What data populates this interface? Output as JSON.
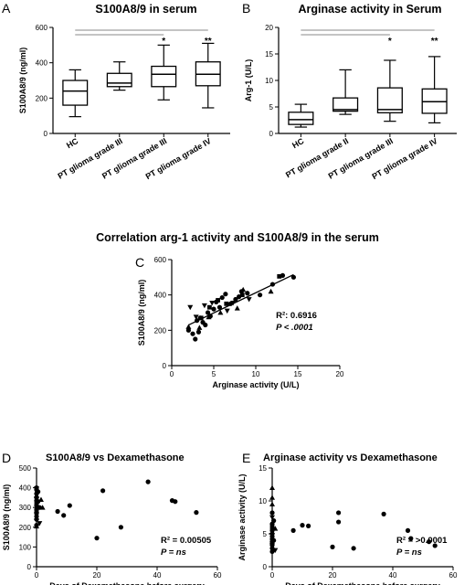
{
  "chart_data": [
    {
      "panel": "A",
      "type": "box",
      "title": "S100A8/9 in serum",
      "ylabel": "S100A8/9 (ng/ml)",
      "ylim": [
        0,
        600
      ],
      "yticks": [
        "0",
        "200",
        "400",
        "600"
      ],
      "categories": [
        "HC",
        "PT glioma grade III",
        "PT glioma grade III",
        "PT glioma grade IV"
      ],
      "boxes": [
        {
          "min": 95,
          "q1": 160,
          "median": 240,
          "q3": 300,
          "max": 360
        },
        {
          "min": 245,
          "q1": 265,
          "median": 285,
          "q3": 340,
          "max": 405
        },
        {
          "min": 190,
          "q1": 265,
          "median": 335,
          "q3": 380,
          "max": 500
        },
        {
          "min": 145,
          "q1": 270,
          "median": 335,
          "q3": 405,
          "max": 510
        }
      ],
      "significance": [
        {
          "to": 3,
          "label": "*"
        },
        {
          "to": 4,
          "label": "**"
        }
      ]
    },
    {
      "panel": "B",
      "type": "box",
      "title": "Arginase activity in Serum",
      "ylabel": "Arg-1 (U/L)",
      "ylim": [
        0,
        20
      ],
      "yticks": [
        "0",
        "5",
        "10",
        "15",
        "20"
      ],
      "categories": [
        "HC",
        "PT glioma grade II",
        "PT glioma grade III",
        "PT glioma grade IV"
      ],
      "boxes": [
        {
          "min": 1.2,
          "q1": 1.7,
          "median": 2.6,
          "q3": 4.0,
          "max": 5.5
        },
        {
          "min": 3.6,
          "q1": 4.2,
          "median": 4.5,
          "q3": 6.7,
          "max": 12.0
        },
        {
          "min": 2.3,
          "q1": 3.9,
          "median": 4.5,
          "q3": 8.6,
          "max": 13.8
        },
        {
          "min": 2.0,
          "q1": 3.8,
          "median": 6.0,
          "q3": 8.4,
          "max": 14.5
        }
      ],
      "significance": [
        {
          "to": 3,
          "label": "*"
        },
        {
          "to": 4,
          "label": "**"
        }
      ]
    },
    {
      "panel": "C",
      "type": "scatter",
      "title": "Correlation arg-1 activity and S100A8/9 in the serum",
      "xlabel": "Arginase activity (U/L)",
      "ylabel": "S100A8/9 (ng/ml)",
      "xlim": [
        0,
        20
      ],
      "ylim": [
        0,
        600
      ],
      "xticks": [
        "0",
        "5",
        "10",
        "15",
        "20"
      ],
      "yticks": [
        "0",
        "200",
        "400",
        "600"
      ],
      "stat_r2": "R²: 0.6916",
      "stat_p": "P < .0001",
      "fit": {
        "x": [
          2,
          14.5
        ],
        "y": [
          230,
          515
        ]
      },
      "series": [
        {
          "marker": "circle",
          "points": [
            [
              2,
              200
            ],
            [
              2.5,
              180
            ],
            [
              2.8,
              150
            ],
            [
              3.0,
              255
            ],
            [
              3.2,
              190
            ],
            [
              3.4,
              270
            ],
            [
              3.7,
              245
            ],
            [
              4.0,
              230
            ],
            [
              4.3,
              300
            ],
            [
              4.6,
              280
            ],
            [
              5.0,
              320
            ],
            [
              5.3,
              360
            ],
            [
              5.7,
              330
            ],
            [
              6.0,
              385
            ],
            [
              6.4,
              405
            ],
            [
              7.0,
              350
            ],
            [
              7.6,
              375
            ],
            [
              8.0,
              390
            ],
            [
              8.3,
              420
            ],
            [
              9.0,
              410
            ],
            [
              10.5,
              400
            ],
            [
              12.0,
              460
            ],
            [
              13.2,
              510
            ],
            [
              14.5,
              500
            ]
          ]
        },
        {
          "marker": "square",
          "points": [
            [
              3.5,
              270
            ],
            [
              4.5,
              330
            ],
            [
              5.5,
              370
            ],
            [
              6.5,
              350
            ],
            [
              8.4,
              400
            ],
            [
              12.8,
              505
            ]
          ]
        },
        {
          "marker": "triangle-up",
          "points": [
            [
              2.0,
              220
            ],
            [
              3.3,
              215
            ],
            [
              4.4,
              275
            ],
            [
              5.8,
              300
            ],
            [
              7.8,
              325
            ],
            [
              8.5,
              430
            ],
            [
              11.8,
              420
            ]
          ]
        },
        {
          "marker": "triangle-down",
          "points": [
            [
              2.2,
              330
            ],
            [
              2.9,
              275
            ],
            [
              3.9,
              340
            ],
            [
              4.8,
              355
            ],
            [
              6.6,
              310
            ],
            [
              7.3,
              355
            ],
            [
              9.2,
              375
            ]
          ]
        }
      ]
    },
    {
      "panel": "D",
      "type": "scatter",
      "title": "S100A8/9 vs Dexamethasone",
      "xlabel": "Days of Dexamethasone before surgery",
      "ylabel": "S100A8/9 (ng/ml)",
      "xlim": [
        0,
        60
      ],
      "ylim": [
        0,
        500
      ],
      "xticks": [
        "0",
        "20",
        "40",
        "60"
      ],
      "yticks": [
        "0",
        "100",
        "200",
        "300",
        "400",
        "500"
      ],
      "stat_r2": "R² = 0.00505",
      "stat_p": "P = ns",
      "series": [
        {
          "marker": "circle",
          "points": [
            [
              0,
              400
            ],
            [
              0,
              390
            ],
            [
              0,
              370
            ],
            [
              0,
              350
            ],
            [
              0,
              335
            ],
            [
              0,
              310
            ],
            [
              0,
              290
            ],
            [
              0,
              270
            ],
            [
              0,
              255
            ],
            [
              0,
              240
            ],
            [
              0,
              210
            ],
            [
              0.5,
              380
            ],
            [
              0.5,
              330
            ],
            [
              1,
              300
            ],
            [
              7,
              280
            ],
            [
              9,
              260
            ],
            [
              11,
              310
            ],
            [
              20,
              145
            ],
            [
              22,
              385
            ],
            [
              28,
              200
            ],
            [
              37,
              430
            ],
            [
              45,
              335
            ],
            [
              46,
              330
            ],
            [
              53,
              275
            ]
          ]
        },
        {
          "marker": "square",
          "points": [
            [
              0,
              320
            ],
            [
              0,
              280
            ]
          ]
        },
        {
          "marker": "triangle-up",
          "points": [
            [
              0,
              360
            ],
            [
              0,
              250
            ],
            [
              0,
              205
            ],
            [
              1.5,
              340
            ],
            [
              2,
              300
            ]
          ]
        },
        {
          "marker": "triangle-down",
          "points": [
            [
              0,
              395
            ],
            [
              0,
              345
            ],
            [
              0,
              265
            ],
            [
              1,
              220
            ]
          ]
        }
      ]
    },
    {
      "panel": "E",
      "type": "scatter",
      "title": "Arginase activity vs Dexamethasone",
      "xlabel": "Days of Dexamethasone before surgery",
      "ylabel": "Arginase activity (U/L)",
      "xlim": [
        0,
        60
      ],
      "ylim": [
        0,
        15
      ],
      "xticks": [
        "0",
        "20",
        "40",
        "60"
      ],
      "yticks": [
        "0",
        "5",
        "10",
        "15"
      ],
      "stat_r2": "R² = >0.0001",
      "stat_p": "P = ns",
      "series": [
        {
          "marker": "circle",
          "points": [
            [
              0,
              8.2
            ],
            [
              0,
              6.5
            ],
            [
              0,
              5.5
            ],
            [
              0,
              5.0
            ],
            [
              0,
              4.6
            ],
            [
              0,
              4.2
            ],
            [
              0,
              3.8
            ],
            [
              0,
              3.3
            ],
            [
              0,
              2.8
            ],
            [
              0,
              2.3
            ],
            [
              0.5,
              7.0
            ],
            [
              0.5,
              4.0
            ],
            [
              7,
              5.5
            ],
            [
              10,
              6.3
            ],
            [
              12,
              6.2
            ],
            [
              20,
              3.0
            ],
            [
              22,
              8.2
            ],
            [
              22,
              6.8
            ],
            [
              27,
              2.8
            ],
            [
              37,
              8.0
            ],
            [
              45,
              5.5
            ],
            [
              46,
              4.3
            ],
            [
              52,
              3.8
            ],
            [
              54,
              3.2
            ]
          ]
        },
        {
          "marker": "square",
          "points": [
            [
              0,
              6.0
            ],
            [
              0,
              3.6
            ]
          ]
        },
        {
          "marker": "triangle-up",
          "points": [
            [
              0,
              12.0
            ],
            [
              0,
              10.5
            ],
            [
              0,
              9.5
            ],
            [
              1,
              5.8
            ]
          ]
        },
        {
          "marker": "triangle-down",
          "points": [
            [
              0,
              7.5
            ],
            [
              0,
              4.8
            ],
            [
              0,
              3.2
            ],
            [
              1,
              2.5
            ]
          ]
        }
      ]
    }
  ]
}
